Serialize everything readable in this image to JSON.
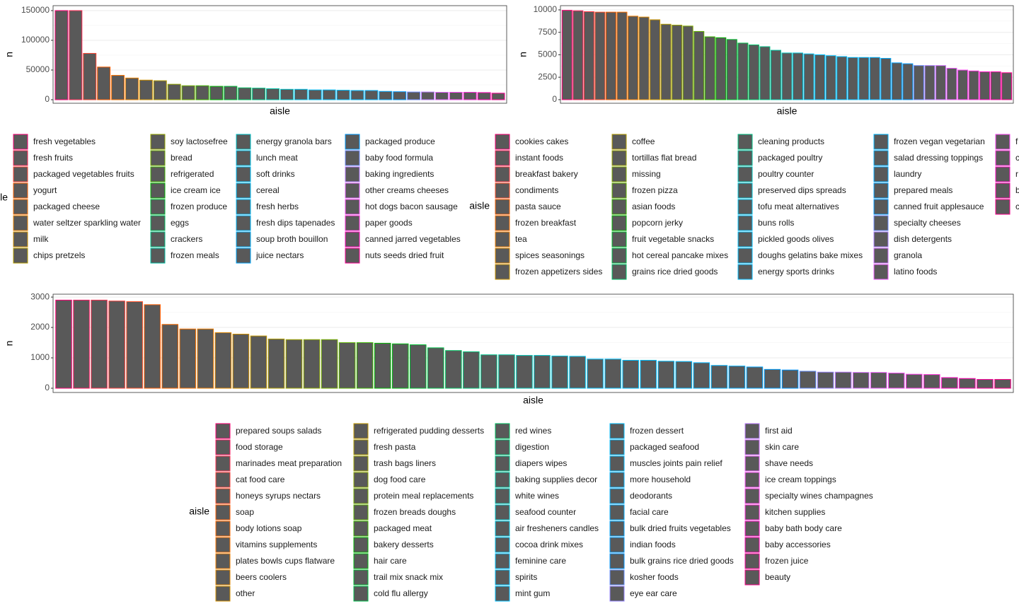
{
  "chart_data": [
    {
      "type": "bar",
      "xlabel": "aisle",
      "ylabel": "n",
      "legend_title": "aisle",
      "fill": "#595959",
      "palette": "hue",
      "grid": true,
      "ylim": [
        -5950,
        158300
      ],
      "yticks": [
        0,
        50000,
        100000,
        150000
      ],
      "categories": [
        "fresh vegetables",
        "fresh fruits",
        "packaged vegetables fruits",
        "yogurt",
        "packaged cheese",
        "water seltzer sparkling water",
        "milk",
        "chips pretzels",
        "soy lactosefree",
        "bread",
        "refrigerated",
        "ice cream ice",
        "frozen produce",
        "eggs",
        "crackers",
        "frozen meals",
        "energy granola bars",
        "lunch meat",
        "soft drinks",
        "cereal",
        "fresh herbs",
        "fresh dips tapenades",
        "soup broth bouillon",
        "juice nectars",
        "packaged produce",
        "baby food formula",
        "baking ingredients",
        "other creams cheeses",
        "hot dogs bacon sausage",
        "paper goods",
        "canned jarred vegetables",
        "nuts seeds dried fruit"
      ],
      "values": [
        150000,
        150000,
        78000,
        55000,
        41000,
        36500,
        33000,
        32000,
        26000,
        23500,
        23500,
        22500,
        22500,
        20000,
        19500,
        18500,
        17500,
        17500,
        16500,
        16500,
        16000,
        15500,
        15500,
        14000,
        13500,
        13000,
        13000,
        12500,
        12500,
        12500,
        12000,
        11000
      ]
    },
    {
      "type": "bar",
      "xlabel": "aisle",
      "ylabel": "n",
      "legend_title": "aisle",
      "fill": "#595959",
      "palette": "hue",
      "grid": true,
      "ylim": [
        -400,
        10470
      ],
      "yticks": [
        0,
        2500,
        5000,
        7500,
        10000
      ],
      "categories": [
        "cookies cakes",
        "instant foods",
        "breakfast bakery",
        "condiments",
        "pasta sauce",
        "frozen breakfast",
        "tea",
        "spices seasonings",
        "frozen appetizers sides",
        "coffee",
        "tortillas flat bread",
        "missing",
        "frozen pizza",
        "asian foods",
        "popcorn jerky",
        "fruit vegetable snacks",
        "hot cereal pancake mixes",
        "grains rice dried goods",
        "cleaning products",
        "packaged poultry",
        "poultry counter",
        "preserved dips spreads",
        "tofu meat alternatives",
        "buns rolls",
        "pickled goods olives",
        "doughs gelatins bake mixes",
        "energy sports drinks",
        "frozen vegan vegetarian",
        "salad dressing toppings",
        "laundry",
        "prepared meals",
        "canned fruit applesauce",
        "specialty cheeses",
        "dish detergents",
        "granola",
        "latino foods",
        "f",
        "c",
        "r",
        "b",
        "c"
      ],
      "values": [
        9950,
        9900,
        9800,
        9750,
        9750,
        9750,
        9300,
        9200,
        8900,
        8400,
        8300,
        8200,
        7600,
        7000,
        6900,
        6700,
        6300,
        6100,
        5900,
        5500,
        5200,
        5200,
        5100,
        5000,
        4900,
        4800,
        4700,
        4700,
        4700,
        4600,
        4100,
        4000,
        3800,
        3800,
        3800,
        3500,
        3300,
        3200,
        3100,
        3100,
        3000
      ]
    },
    {
      "type": "bar",
      "xlabel": "aisle",
      "ylabel": "n",
      "legend_title": "aisle",
      "fill": "#595959",
      "palette": "hue",
      "grid": true,
      "ylim": [
        -140,
        3095
      ],
      "yticks": [
        0,
        1000,
        2000,
        3000
      ],
      "categories": [
        "prepared soups salads",
        "food storage",
        "marinades meat preparation",
        "cat food care",
        "honeys syrups nectars",
        "soap",
        "body lotions soap",
        "vitamins supplements",
        "plates bowls cups flatware",
        "beers coolers",
        "other",
        "refrigerated pudding desserts",
        "fresh pasta",
        "trash bags liners",
        "dog food care",
        "protein meal replacements",
        "frozen breads doughs",
        "packaged meat",
        "bakery desserts",
        "hair care",
        "trail mix snack mix",
        "cold flu allergy",
        "red wines",
        "digestion",
        "diapers wipes",
        "baking supplies decor",
        "white wines",
        "seafood counter",
        "air fresheners candles",
        "cocoa drink mixes",
        "feminine care",
        "spirits",
        "mint gum",
        "frozen dessert",
        "packaged seafood",
        "muscles joints pain relief",
        "more household",
        "deodorants",
        "facial care",
        "bulk dried fruits vegetables",
        "indian foods",
        "bulk grains rice dried goods",
        "kosher foods",
        "eye ear care",
        "first aid",
        "skin care",
        "shave needs",
        "ice cream toppings",
        "specialty wines champagnes",
        "kitchen supplies",
        "baby bath body care",
        "baby accessories",
        "frozen juice",
        "beauty"
      ],
      "values": [
        2900,
        2900,
        2900,
        2870,
        2850,
        2750,
        2100,
        1950,
        1950,
        1830,
        1780,
        1720,
        1620,
        1600,
        1600,
        1600,
        1500,
        1500,
        1480,
        1460,
        1430,
        1330,
        1240,
        1200,
        1100,
        1100,
        1080,
        1080,
        1060,
        1050,
        960,
        960,
        920,
        920,
        890,
        880,
        840,
        750,
        730,
        700,
        620,
        600,
        560,
        530,
        530,
        520,
        520,
        500,
        460,
        450,
        350,
        320,
        290,
        290
      ]
    }
  ]
}
